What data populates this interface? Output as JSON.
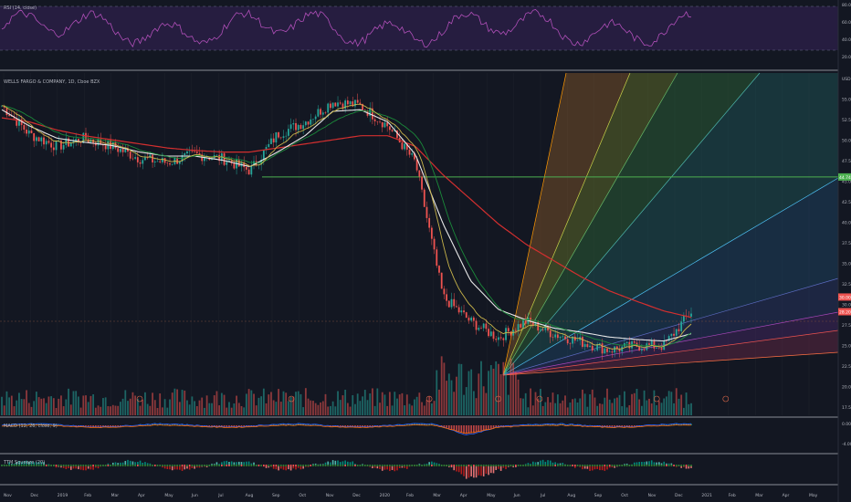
{
  "rsi": {
    "label": "RSI (14, close)",
    "ticks": [
      "80.00",
      "60.00",
      "40.00",
      "20.00"
    ],
    "overbought": 70,
    "oversold": 30
  },
  "main": {
    "title": "WELLS FARGO & COMPANY, 1D, Cboe BZX",
    "price_ticks": [
      "USD",
      "55.00",
      "52.50",
      "50.00",
      "47.50",
      "45.00",
      "42.50",
      "40.00",
      "37.50",
      "35.00",
      "32.50",
      "30.00",
      "27.50",
      "25.00",
      "22.50",
      "20.00",
      "17.50"
    ],
    "price_badges": [
      {
        "text": "44.74",
        "color": "#4caf50",
        "value": 44.74
      },
      {
        "text": "30.00",
        "color": "#ef5350",
        "value": 30.0
      },
      {
        "text": "28.20",
        "color": "#ef5350",
        "value": 28.2
      }
    ],
    "horizontal_level": 44.74
  },
  "macd": {
    "label": "MACD (12, 26, close, 9)",
    "ticks": [
      "0.00",
      "-4.00"
    ]
  },
  "ttm": {
    "label": "TTM Squeeze (20)"
  },
  "x_ticks": [
    "Nov",
    "Dec",
    "2019",
    "Feb",
    "Mar",
    "Apr",
    "May",
    "Jun",
    "Jul",
    "Aug",
    "Sep",
    "Oct",
    "Nov",
    "Dec",
    "2020",
    "Feb",
    "Mar",
    "Apr",
    "May",
    "Jun",
    "Jul",
    "Aug",
    "Sep",
    "Oct",
    "Nov",
    "Dec",
    "2021",
    "Feb",
    "Mar",
    "Apr",
    "May"
  ],
  "chart_data": {
    "type": "line",
    "title": "WELLS FARGO & COMPANY, 1D, Cboe BZX",
    "ylim": [
      17.5,
      57.5
    ],
    "series": [
      {
        "name": "price",
        "x": [
          "2018-11",
          "2018-12",
          "2019-01",
          "2019-02",
          "2019-03",
          "2019-04",
          "2019-05",
          "2019-06",
          "2019-07",
          "2019-08",
          "2019-09",
          "2019-10",
          "2019-11",
          "2019-12",
          "2020-01",
          "2020-02",
          "2020-03",
          "2020-04",
          "2020-05",
          "2020-06",
          "2020-07",
          "2020-08",
          "2020-09",
          "2020-10",
          "2020-11",
          "2020-12"
        ],
        "values": [
          53.5,
          50.0,
          48.5,
          49.5,
          48.5,
          47.0,
          46.5,
          47.5,
          47.0,
          45.5,
          50.0,
          51.5,
          54.0,
          53.5,
          51.0,
          46.5,
          30.0,
          27.0,
          25.0,
          27.0,
          25.5,
          24.5,
          23.5,
          24.0,
          24.0,
          28.2
        ]
      },
      {
        "name": "EMA slow (red)",
        "values": [
          52.0,
          51.5,
          50.5,
          49.8,
          49.3,
          48.8,
          48.3,
          48.0,
          47.8,
          47.8,
          48.3,
          48.8,
          49.3,
          49.8,
          49.8,
          48.5,
          45.0,
          42.0,
          39.0,
          36.5,
          34.5,
          32.5,
          30.8,
          29.5,
          28.3,
          27.5
        ]
      },
      {
        "name": "EMA mid (white)",
        "values": [
          53.0,
          51.0,
          49.5,
          49.0,
          48.6,
          47.8,
          47.3,
          47.3,
          46.8,
          46.0,
          47.8,
          49.8,
          52.8,
          53.0,
          51.5,
          47.5,
          39.0,
          32.0,
          28.5,
          27.2,
          26.2,
          25.7,
          25.1,
          24.8,
          24.6,
          25.5
        ]
      }
    ],
    "fan_origin": {
      "x": "2020-05-14",
      "y": 22.5
    },
    "fan_lines": 9,
    "secondary_panels": [
      "RSI (14, close)",
      "MACD (12, 26, close, 9)",
      "TTM Squeeze (20)"
    ]
  }
}
